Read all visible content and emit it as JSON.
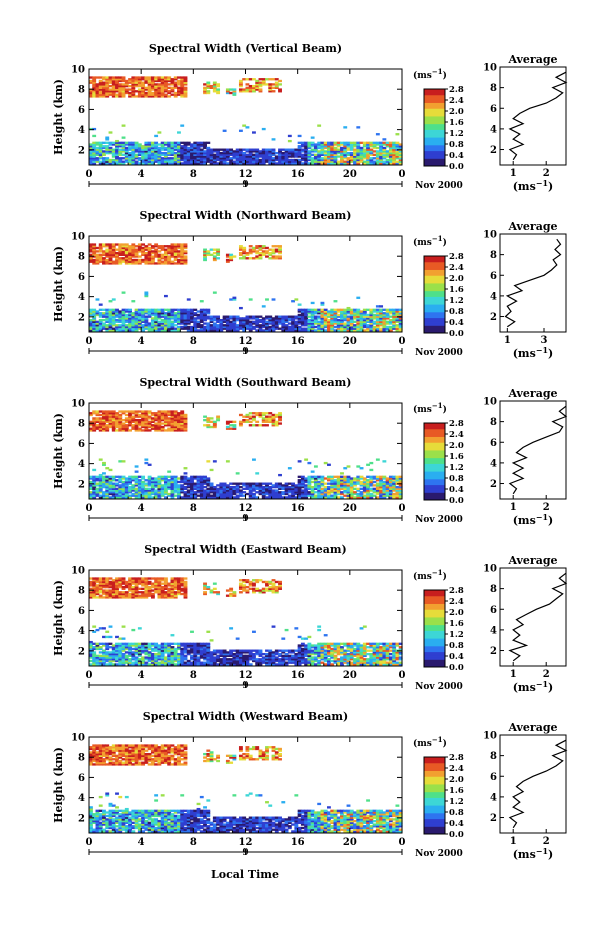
{
  "figure": {
    "xlabel": "Local Time",
    "date_label": "Nov 2000",
    "day_marker": "9",
    "colorbar_unit": "(ms",
    "colorbar_unit_exp": "−1",
    "colorbar_unit_close": ")",
    "avg_title": "Average",
    "colors": {
      "colormap": [
        "#2a1a6e",
        "#2f3fd0",
        "#2e74f0",
        "#2aaef0",
        "#3dd6d6",
        "#4fe08a",
        "#9be04a",
        "#e6dc3a",
        "#f2a030",
        "#e85a25",
        "#c81e1e"
      ]
    }
  },
  "chart_data": [
    {
      "type": "heatmap",
      "title": "Spectral Width (Vertical Beam)",
      "ylabel": "Height (km)",
      "xlabel": "Local Time",
      "x_ticks": [
        "0",
        "4",
        "8",
        "12",
        "16",
        "20",
        "0"
      ],
      "xlim": [
        0,
        24
      ],
      "y_ticks": [
        "2",
        "4",
        "6",
        "8",
        "10"
      ],
      "ylim": [
        0.5,
        10
      ],
      "colorbar": {
        "unit": "(ms−1)",
        "ticks": [
          "0.0",
          "0.4",
          "0.8",
          "1.2",
          "1.6",
          "2.0",
          "2.4",
          "2.8"
        ],
        "range": [
          0,
          2.8
        ]
      },
      "average": {
        "title": "Average",
        "x_ticks": [
          "1",
          "2"
        ],
        "xlim": [
          0.6,
          2.6
        ],
        "xlabel": "(ms−1)",
        "y_ticks": [
          "2",
          "4",
          "6",
          "8",
          "10"
        ],
        "profile": [
          [
            1.0,
            1.0
          ],
          [
            1.1,
            1.5
          ],
          [
            0.9,
            2.0
          ],
          [
            1.3,
            2.5
          ],
          [
            1.0,
            3.0
          ],
          [
            1.2,
            3.5
          ],
          [
            0.9,
            4.0
          ],
          [
            1.3,
            4.5
          ],
          [
            1.0,
            5.0
          ],
          [
            1.2,
            5.5
          ],
          [
            1.5,
            6.0
          ],
          [
            2.0,
            6.5
          ],
          [
            2.3,
            7.0
          ],
          [
            2.5,
            7.5
          ],
          [
            2.2,
            8.0
          ],
          [
            2.6,
            8.5
          ],
          [
            2.3,
            9.0
          ],
          [
            2.6,
            9.5
          ]
        ]
      }
    },
    {
      "type": "heatmap",
      "title": "Spectral Width (Northward Beam)",
      "ylabel": "Height (km)",
      "xlabel": "Local Time",
      "x_ticks": [
        "0",
        "4",
        "8",
        "12",
        "16",
        "20",
        "0"
      ],
      "xlim": [
        0,
        24
      ],
      "y_ticks": [
        "2",
        "4",
        "6",
        "8",
        "10"
      ],
      "ylim": [
        0.5,
        10
      ],
      "colorbar": {
        "unit": "(ms−1)",
        "ticks": [
          "0.0",
          "0.4",
          "0.8",
          "1.2",
          "1.6",
          "2.0",
          "2.4",
          "2.8"
        ],
        "range": [
          0,
          2.8
        ]
      },
      "average": {
        "title": "Average",
        "x_ticks": [
          "1",
          "3"
        ],
        "xlim": [
          0.6,
          4.2
        ],
        "xlabel": "(ms−1)",
        "y_ticks": [
          "2",
          "4",
          "6",
          "8",
          "10"
        ],
        "profile": [
          [
            1.0,
            1.0
          ],
          [
            1.4,
            1.5
          ],
          [
            0.9,
            2.0
          ],
          [
            1.2,
            2.5
          ],
          [
            1.0,
            3.0
          ],
          [
            1.5,
            3.5
          ],
          [
            1.0,
            4.0
          ],
          [
            1.8,
            4.5
          ],
          [
            1.4,
            5.0
          ],
          [
            2.2,
            5.5
          ],
          [
            3.0,
            6.0
          ],
          [
            3.4,
            6.5
          ],
          [
            3.7,
            7.0
          ],
          [
            3.5,
            7.5
          ],
          [
            3.9,
            8.0
          ],
          [
            3.6,
            8.5
          ],
          [
            3.9,
            9.0
          ],
          [
            3.7,
            9.5
          ]
        ]
      }
    },
    {
      "type": "heatmap",
      "title": "Spectral Width (Southward Beam)",
      "ylabel": "Height (km)",
      "xlabel": "Local Time",
      "x_ticks": [
        "0",
        "4",
        "8",
        "12",
        "16",
        "20",
        "0"
      ],
      "xlim": [
        0,
        24
      ],
      "y_ticks": [
        "2",
        "4",
        "6",
        "8",
        "10"
      ],
      "ylim": [
        0.5,
        10
      ],
      "colorbar": {
        "unit": "(ms−1)",
        "ticks": [
          "0.0",
          "0.4",
          "0.8",
          "1.2",
          "1.6",
          "2.0",
          "2.4",
          "2.8"
        ],
        "range": [
          0,
          2.8
        ]
      },
      "average": {
        "title": "Average",
        "x_ticks": [
          "1",
          "2"
        ],
        "xlim": [
          0.6,
          2.6
        ],
        "xlabel": "(ms−1)",
        "y_ticks": [
          "2",
          "4",
          "6",
          "8",
          "10"
        ],
        "profile": [
          [
            1.0,
            1.0
          ],
          [
            1.1,
            1.5
          ],
          [
            0.9,
            2.0
          ],
          [
            1.3,
            2.5
          ],
          [
            1.0,
            3.0
          ],
          [
            1.3,
            3.5
          ],
          [
            1.0,
            4.0
          ],
          [
            1.4,
            4.5
          ],
          [
            1.1,
            5.0
          ],
          [
            1.3,
            5.5
          ],
          [
            1.6,
            6.0
          ],
          [
            2.0,
            6.5
          ],
          [
            2.4,
            7.0
          ],
          [
            2.5,
            7.5
          ],
          [
            2.2,
            8.0
          ],
          [
            2.6,
            8.5
          ],
          [
            2.4,
            9.0
          ],
          [
            2.6,
            9.5
          ]
        ]
      }
    },
    {
      "type": "heatmap",
      "title": "Spectral Width (Eastward Beam)",
      "ylabel": "Height (km)",
      "xlabel": "Local Time",
      "x_ticks": [
        "0",
        "4",
        "8",
        "12",
        "16",
        "20",
        "0"
      ],
      "xlim": [
        0,
        24
      ],
      "y_ticks": [
        "2",
        "4",
        "6",
        "8",
        "10"
      ],
      "ylim": [
        0.5,
        10
      ],
      "colorbar": {
        "unit": "(ms−1)",
        "ticks": [
          "0.0",
          "0.4",
          "0.8",
          "1.2",
          "1.6",
          "2.0",
          "2.4",
          "2.8"
        ],
        "range": [
          0,
          2.8
        ]
      },
      "average": {
        "title": "Average",
        "x_ticks": [
          "1",
          "2"
        ],
        "xlim": [
          0.6,
          2.6
        ],
        "xlabel": "(ms−1)",
        "y_ticks": [
          "2",
          "4",
          "6",
          "8",
          "10"
        ],
        "profile": [
          [
            1.0,
            1.0
          ],
          [
            1.2,
            1.5
          ],
          [
            0.9,
            2.0
          ],
          [
            1.4,
            2.5
          ],
          [
            1.0,
            3.0
          ],
          [
            1.2,
            3.5
          ],
          [
            1.0,
            4.0
          ],
          [
            1.3,
            4.5
          ],
          [
            1.1,
            5.0
          ],
          [
            1.4,
            5.5
          ],
          [
            1.7,
            6.0
          ],
          [
            2.1,
            6.5
          ],
          [
            2.3,
            7.0
          ],
          [
            2.5,
            7.5
          ],
          [
            2.2,
            8.0
          ],
          [
            2.6,
            8.5
          ],
          [
            2.4,
            9.0
          ],
          [
            2.6,
            9.5
          ]
        ]
      }
    },
    {
      "type": "heatmap",
      "title": "Spectral Width (Westward Beam)",
      "ylabel": "Height (km)",
      "xlabel": "Local Time",
      "x_ticks": [
        "0",
        "4",
        "8",
        "12",
        "16",
        "20",
        "0"
      ],
      "xlim": [
        0,
        24
      ],
      "y_ticks": [
        "2",
        "4",
        "6",
        "8",
        "10"
      ],
      "ylim": [
        0.5,
        10
      ],
      "colorbar": {
        "unit": "(ms−1)",
        "ticks": [
          "0.0",
          "0.4",
          "0.8",
          "1.2",
          "1.6",
          "2.0",
          "2.4",
          "2.8"
        ],
        "range": [
          0,
          2.8
        ]
      },
      "average": {
        "title": "Average",
        "x_ticks": [
          "1",
          "2"
        ],
        "xlim": [
          0.6,
          2.6
        ],
        "xlabel": "(ms−1)",
        "y_ticks": [
          "2",
          "4",
          "6",
          "8",
          "10"
        ],
        "profile": [
          [
            1.0,
            1.0
          ],
          [
            1.1,
            1.5
          ],
          [
            0.9,
            2.0
          ],
          [
            1.3,
            2.5
          ],
          [
            1.0,
            3.0
          ],
          [
            1.2,
            3.5
          ],
          [
            1.0,
            4.0
          ],
          [
            1.3,
            4.5
          ],
          [
            1.1,
            5.0
          ],
          [
            1.3,
            5.5
          ],
          [
            1.6,
            6.0
          ],
          [
            2.0,
            6.5
          ],
          [
            2.3,
            7.0
          ],
          [
            2.5,
            7.5
          ],
          [
            2.2,
            8.0
          ],
          [
            2.6,
            8.5
          ],
          [
            2.3,
            9.0
          ],
          [
            2.6,
            9.5
          ]
        ]
      }
    }
  ]
}
